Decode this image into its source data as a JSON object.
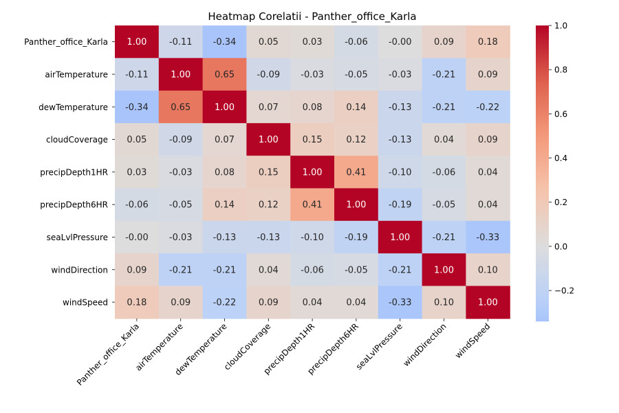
{
  "chart_data": {
    "type": "heatmap",
    "title": "Heatmap Corelatii - Panther_office_Karla",
    "row_labels": [
      "Panther_office_Karla",
      "airTemperature",
      "dewTemperature",
      "cloudCoverage",
      "precipDepth1HR",
      "precipDepth6HR",
      "seaLvlPressure",
      "windDirection",
      "windSpeed"
    ],
    "col_labels": [
      "Panther_office_Karla",
      "airTemperature",
      "dewTemperature",
      "cloudCoverage",
      "precipDepth1HR",
      "precipDepth6HR",
      "seaLvlPressure",
      "windDirection",
      "windSpeed"
    ],
    "values": [
      [
        1.0,
        -0.11,
        -0.34,
        0.05,
        0.03,
        -0.06,
        -0.0,
        0.09,
        0.18
      ],
      [
        -0.11,
        1.0,
        0.65,
        -0.09,
        -0.03,
        -0.05,
        -0.03,
        -0.21,
        0.09
      ],
      [
        -0.34,
        0.65,
        1.0,
        0.07,
        0.08,
        0.14,
        -0.13,
        -0.21,
        -0.22
      ],
      [
        0.05,
        -0.09,
        0.07,
        1.0,
        0.15,
        0.12,
        -0.13,
        0.04,
        0.09
      ],
      [
        0.03,
        -0.03,
        0.08,
        0.15,
        1.0,
        0.41,
        -0.1,
        -0.06,
        0.04
      ],
      [
        -0.06,
        -0.05,
        0.14,
        0.12,
        0.41,
        1.0,
        -0.19,
        -0.05,
        0.04
      ],
      [
        -0.0,
        -0.03,
        -0.13,
        -0.13,
        -0.1,
        -0.19,
        1.0,
        -0.21,
        -0.33
      ],
      [
        0.09,
        -0.21,
        -0.21,
        0.04,
        -0.06,
        -0.05,
        -0.21,
        1.0,
        0.1
      ],
      [
        0.18,
        0.09,
        -0.22,
        0.09,
        0.04,
        0.04,
        -0.33,
        0.1,
        1.0
      ]
    ],
    "value_labels": [
      [
        "1.00",
        "-0.11",
        "-0.34",
        "0.05",
        "0.03",
        "-0.06",
        "-0.00",
        "0.09",
        "0.18"
      ],
      [
        "-0.11",
        "1.00",
        "0.65",
        "-0.09",
        "-0.03",
        "-0.05",
        "-0.03",
        "-0.21",
        "0.09"
      ],
      [
        "-0.34",
        "0.65",
        "1.00",
        "0.07",
        "0.08",
        "0.14",
        "-0.13",
        "-0.21",
        "-0.22"
      ],
      [
        "0.05",
        "-0.09",
        "0.07",
        "1.00",
        "0.15",
        "0.12",
        "-0.13",
        "0.04",
        "0.09"
      ],
      [
        "0.03",
        "-0.03",
        "0.08",
        "0.15",
        "1.00",
        "0.41",
        "-0.10",
        "-0.06",
        "0.04"
      ],
      [
        "-0.06",
        "-0.05",
        "0.14",
        "0.12",
        "0.41",
        "1.00",
        "-0.19",
        "-0.05",
        "0.04"
      ],
      [
        "-0.00",
        "-0.03",
        "-0.13",
        "-0.13",
        "-0.10",
        "-0.19",
        "1.00",
        "-0.21",
        "-0.33"
      ],
      [
        "0.09",
        "-0.21",
        "-0.21",
        "0.04",
        "-0.06",
        "-0.05",
        "-0.21",
        "1.00",
        "0.10"
      ],
      [
        "0.18",
        "0.09",
        "-0.22",
        "0.09",
        "0.04",
        "0.04",
        "-0.33",
        "0.10",
        "1.00"
      ]
    ],
    "colormap": "coolwarm",
    "vmin": -0.34,
    "vmax": 1.0,
    "colorbar": {
      "ticks": [
        -0.2,
        0.0,
        0.2,
        0.4,
        0.6,
        0.8,
        1.0
      ],
      "tick_labels": [
        "−0.2",
        "0.0",
        "0.2",
        "0.4",
        "0.6",
        "0.8",
        "1.0"
      ],
      "placement": "right"
    },
    "grid": false,
    "annotated": true
  }
}
